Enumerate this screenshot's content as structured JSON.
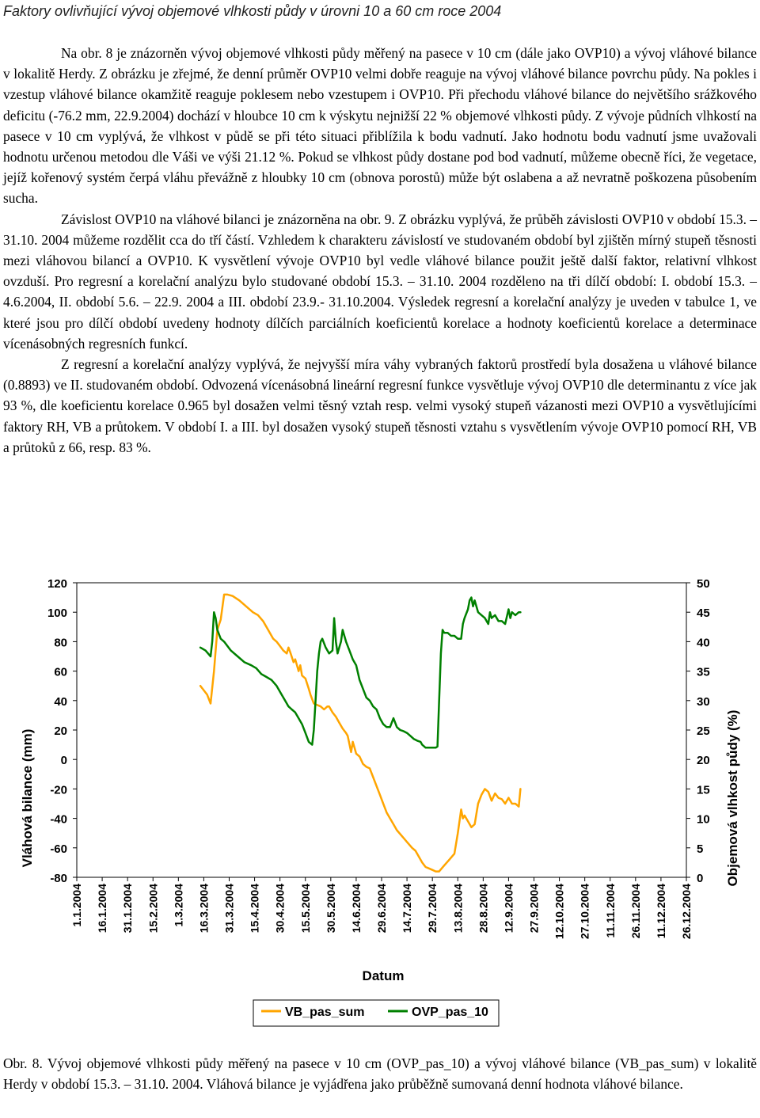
{
  "heading": "Faktory ovlivňující vývoj objemové vlhkosti půdy v úrovni 10 a 60 cm roce 2004",
  "paragraphs": [
    "Na obr. 8 je znázorněn vývoj objemové vlhkosti půdy měřený na pasece v 10 cm (dále jako OVP10) a vývoj vláhové bilance v lokalitě Herdy. Z obrázku je zřejmé, že denní průměr OVP10 velmi dobře reaguje na vývoj vláhové bilance povrchu půdy. Na pokles i vzestup vláhové bilance okamžitě reaguje poklesem nebo vzestupem i OVP10. Při přechodu vláhové bilance do největšího srážkového deficitu (-76.2 mm, 22.9.2004) dochází v hloubce 10 cm k výskytu nejnižší 22 % objemové vlhkosti půdy. Z vývoje půdních vlhkostí na pasece v 10 cm vyplývá, že vlhkost v půdě se při této situaci přiblížila k bodu vadnutí. Jako hodnotu bodu vadnutí jsme uvažovali hodnotu určenou metodou dle Váši ve výši 21.12 %. Pokud se vlhkost půdy dostane pod bod vadnutí, můžeme obecně říci, že vegetace, jejíž kořenový systém čerpá vláhu převážně z hloubky 10 cm (obnova porostů) může být oslabena a až nevratně poškozena působením sucha.",
    "Závislost OVP10 na vláhové bilanci je znázorněna na obr. 9. Z obrázku vyplývá, že průběh závislosti OVP10 v období 15.3. – 31.10. 2004 můžeme rozdělit cca do tří částí. Vzhledem k charakteru závislostí ve studovaném období byl zjištěn mírný stupeň těsnosti mezi vláhovou bilancí a OVP10. K vysvětlení vývoje OVP10 byl vedle vláhové bilance použit ještě další faktor, relativní vlhkost ovzduší. Pro regresní a korelační analýzu bylo studované období 15.3. – 31.10. 2004 rozděleno na tři dílčí období: I. období 15.3. – 4.6.2004, II. období 5.6. – 22.9. 2004 a III. období 23.9.- 31.10.2004. Výsledek regresní a korelační analýzy je uveden v tabulce 1, ve které jsou pro dílčí období uvedeny hodnoty dílčích parciálních koeficientů korelace a hodnoty koeficientů korelace a determinace vícenásobných regresních funkcí.",
    "Z regresní a korelační analýzy vyplývá, že nejvyšší míra váhy vybraných faktorů prostředí byla dosažena u vláhové bilance (0.8893) ve II. studovaném období. Odvozená vícenásobná lineární regresní funkce vysvětluje vývoj OVP10 dle determinantu z více jak 93 %, dle koeficientu korelace 0.965 byl dosažen velmi těsný vztah resp. velmi vysoký stupeň vázanosti mezi OVP10 a vysvětlujícími faktory RH, VB a průtokem. V období I. a III. byl dosažen vysoký stupeň těsnosti vztahu s vysvětlením vývoje OVP10 pomocí RH, VB a průtoků z 66, resp. 83 %."
  ],
  "chart_data": {
    "type": "line",
    "xlabel": "Datum",
    "ylabel": "Vláhová bilance (mm)",
    "y2label": "Objemová vlhkost půdy (%)",
    "ylim": [
      -80,
      120
    ],
    "y2lim": [
      0,
      50
    ],
    "yticks": [
      120,
      100,
      80,
      60,
      40,
      20,
      0,
      -20,
      -40,
      -60,
      -80
    ],
    "y2ticks": [
      50,
      45,
      40,
      35,
      30,
      25,
      20,
      15,
      10,
      5,
      0
    ],
    "categories": [
      "1.1.2004",
      "16.1.2004",
      "31.1.2004",
      "15.2.2004",
      "1.3.2004",
      "16.3.2004",
      "31.3.2004",
      "15.4.2004",
      "30.4.2004",
      "15.5.2004",
      "30.5.2004",
      "14.6.2004",
      "29.6.2004",
      "14.7.2004",
      "29.7.2004",
      "13.8.2004",
      "28.8.2004",
      "12.9.2004",
      "27.9.2004",
      "12.10.2004",
      "27.10.2004",
      "11.11.2004",
      "26.11.2004",
      "11.12.2004",
      "26.12.2004"
    ],
    "grid": false,
    "legend_position": "bottom",
    "series": [
      {
        "name": "VB_pas_sum",
        "axis": "left",
        "color": "#FFA500",
        "points": [
          [
            74,
            50
          ],
          [
            78,
            44
          ],
          [
            80,
            38
          ],
          [
            82,
            60
          ],
          [
            84,
            88
          ],
          [
            86,
            95
          ],
          [
            88,
            112
          ],
          [
            90,
            112
          ],
          [
            93,
            111
          ],
          [
            97,
            108
          ],
          [
            101,
            104
          ],
          [
            105,
            100
          ],
          [
            108,
            98
          ],
          [
            111,
            94
          ],
          [
            114,
            88
          ],
          [
            117,
            82
          ],
          [
            119,
            80
          ],
          [
            121,
            77
          ],
          [
            123,
            74
          ],
          [
            125,
            72
          ],
          [
            126,
            76
          ],
          [
            127,
            73
          ],
          [
            129,
            66
          ],
          [
            130,
            68
          ],
          [
            131,
            64
          ],
          [
            132,
            60
          ],
          [
            133,
            64
          ],
          [
            134,
            57
          ],
          [
            136,
            55
          ],
          [
            138,
            48
          ],
          [
            139,
            44
          ],
          [
            141,
            38
          ],
          [
            143,
            37
          ],
          [
            145,
            36
          ],
          [
            147,
            34
          ],
          [
            149,
            36
          ],
          [
            150,
            36
          ],
          [
            152,
            32
          ],
          [
            154,
            29
          ],
          [
            156,
            25
          ],
          [
            158,
            21
          ],
          [
            160,
            18
          ],
          [
            161,
            16
          ],
          [
            163,
            5
          ],
          [
            164,
            12
          ],
          [
            165,
            8
          ],
          [
            166,
            4
          ],
          [
            168,
            2
          ],
          [
            170,
            -3
          ],
          [
            172,
            -5
          ],
          [
            174,
            -6
          ],
          [
            176,
            -12
          ],
          [
            178,
            -18
          ],
          [
            180,
            -24
          ],
          [
            182,
            -30
          ],
          [
            184,
            -36
          ],
          [
            186,
            -40
          ],
          [
            188,
            -44
          ],
          [
            190,
            -48
          ],
          [
            193,
            -52
          ],
          [
            196,
            -56
          ],
          [
            199,
            -60
          ],
          [
            201,
            -62
          ],
          [
            203,
            -66
          ],
          [
            205,
            -70
          ],
          [
            207,
            -73
          ],
          [
            209,
            -74
          ],
          [
            211,
            -75
          ],
          [
            213,
            -76
          ],
          [
            215,
            -76
          ],
          [
            218,
            -72
          ],
          [
            221,
            -68
          ],
          [
            224,
            -64
          ],
          [
            226,
            -50
          ],
          [
            228,
            -34
          ],
          [
            229,
            -40
          ],
          [
            230,
            -38
          ],
          [
            232,
            -42
          ],
          [
            234,
            -46
          ],
          [
            236,
            -44
          ],
          [
            238,
            -30
          ],
          [
            240,
            -24
          ],
          [
            242,
            -20
          ],
          [
            244,
            -22
          ],
          [
            246,
            -28
          ],
          [
            248,
            -23
          ],
          [
            250,
            -26
          ],
          [
            252,
            -27
          ],
          [
            254,
            -30
          ],
          [
            256,
            -26
          ],
          [
            258,
            -30
          ],
          [
            260,
            -30
          ],
          [
            262,
            -32
          ],
          [
            263,
            -20
          ]
        ]
      },
      {
        "name": "OVP_pas_10",
        "axis": "right",
        "color": "#008000",
        "points": [
          [
            74,
            39
          ],
          [
            77,
            38.5
          ],
          [
            80,
            37.5
          ],
          [
            81,
            40
          ],
          [
            82,
            45
          ],
          [
            83,
            44
          ],
          [
            84,
            42
          ],
          [
            86,
            40.5
          ],
          [
            88,
            40
          ],
          [
            92,
            38.5
          ],
          [
            96,
            37.5
          ],
          [
            100,
            36.5
          ],
          [
            104,
            36
          ],
          [
            107,
            35.5
          ],
          [
            110,
            34.5
          ],
          [
            113,
            34
          ],
          [
            116,
            33.5
          ],
          [
            119,
            32.5
          ],
          [
            122,
            31
          ],
          [
            124,
            30
          ],
          [
            126,
            29
          ],
          [
            128,
            28.5
          ],
          [
            130,
            28
          ],
          [
            132,
            27
          ],
          [
            134,
            26
          ],
          [
            136,
            24.5
          ],
          [
            138,
            23
          ],
          [
            140,
            22.5
          ],
          [
            141,
            25
          ],
          [
            142,
            30
          ],
          [
            143,
            35
          ],
          [
            144,
            38
          ],
          [
            145,
            40
          ],
          [
            146,
            40.5
          ],
          [
            148,
            39
          ],
          [
            150,
            38
          ],
          [
            152,
            38.5
          ],
          [
            153,
            44
          ],
          [
            154,
            40
          ],
          [
            155,
            38
          ],
          [
            156,
            39
          ],
          [
            157,
            40
          ],
          [
            158,
            42
          ],
          [
            160,
            40
          ],
          [
            162,
            38.5
          ],
          [
            164,
            37
          ],
          [
            166,
            36
          ],
          [
            168,
            33.5
          ],
          [
            170,
            32
          ],
          [
            172,
            30.5
          ],
          [
            174,
            30
          ],
          [
            176,
            29
          ],
          [
            178,
            28.5
          ],
          [
            180,
            27
          ],
          [
            182,
            26
          ],
          [
            184,
            25.5
          ],
          [
            186,
            25.5
          ],
          [
            188,
            27
          ],
          [
            190,
            25.5
          ],
          [
            192,
            25
          ],
          [
            194,
            24.8
          ],
          [
            196,
            24.5
          ],
          [
            198,
            24
          ],
          [
            200,
            23.5
          ],
          [
            202,
            23.2
          ],
          [
            204,
            23
          ],
          [
            205,
            22.5
          ],
          [
            207,
            22
          ],
          [
            209,
            22
          ],
          [
            211,
            22
          ],
          [
            213,
            22
          ],
          [
            214,
            22.2
          ],
          [
            215,
            30
          ],
          [
            216,
            38
          ],
          [
            217,
            42
          ],
          [
            218,
            41.5
          ],
          [
            220,
            41.5
          ],
          [
            222,
            41
          ],
          [
            224,
            41
          ],
          [
            226,
            40.5
          ],
          [
            228,
            40.5
          ],
          [
            229,
            43
          ],
          [
            230,
            44
          ],
          [
            232,
            45.5
          ],
          [
            233,
            47
          ],
          [
            234,
            47.5
          ],
          [
            235,
            46
          ],
          [
            236,
            47
          ],
          [
            238,
            45
          ],
          [
            240,
            44.5
          ],
          [
            242,
            44
          ],
          [
            244,
            43
          ],
          [
            245,
            45
          ],
          [
            246,
            44
          ],
          [
            248,
            44.5
          ],
          [
            250,
            43.5
          ],
          [
            252,
            43.5
          ],
          [
            254,
            43
          ],
          [
            256,
            45.5
          ],
          [
            257,
            44
          ],
          [
            258,
            45
          ],
          [
            260,
            44.5
          ],
          [
            262,
            45
          ],
          [
            263,
            45
          ]
        ]
      }
    ]
  },
  "legend": [
    {
      "label": "VB_pas_sum",
      "color": "#FFA500"
    },
    {
      "label": "OVP_pas_10",
      "color": "#008000"
    }
  ],
  "caption": "Obr. 8. Vývoj objemové vlhkosti půdy měřený na pasece v 10 cm (OVP_pas_10) a vývoj vláhové bilance (VB_pas_sum) v lokalitě Herdy v období 15.3. – 31.10. 2004. Vláhová bilance je vyjádřena jako průběžně sumovaná denní hodnota vláhové bilance."
}
